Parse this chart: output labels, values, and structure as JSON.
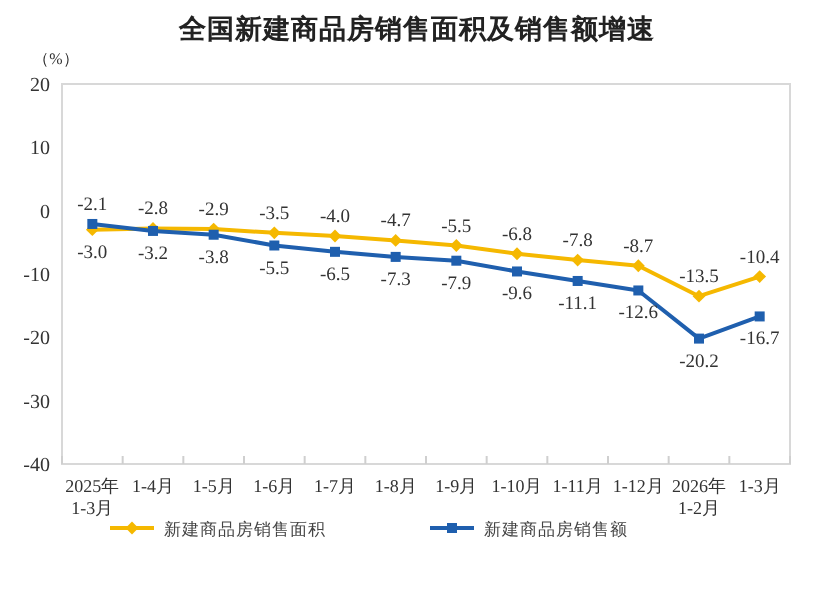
{
  "chart_data": {
    "type": "line",
    "title": "全国新建商品房销售面积及销售额增速",
    "ylabel": "（%）",
    "categories": [
      "2025年\n1-3月",
      "1-4月",
      "1-5月",
      "1-6月",
      "1-7月",
      "1-8月",
      "1-9月",
      "1-10月",
      "1-11月",
      "1-12月",
      "2026年\n1-2月",
      "1-3月"
    ],
    "series": [
      {
        "name": "新建商品房销售面积",
        "color": "#f5b800",
        "marker": "diamond",
        "values": [
          -3.0,
          -2.8,
          -2.9,
          -3.5,
          -4.0,
          -4.7,
          -5.5,
          -6.8,
          -7.8,
          -8.7,
          -13.5,
          -10.4
        ],
        "value_labels": [
          "-3.0",
          "-2.8",
          "-2.9",
          "-3.5",
          "-4.0",
          "-4.7",
          "-5.5",
          "-6.8",
          "-7.8",
          "-8.7",
          "-13.5",
          "-10.4"
        ]
      },
      {
        "name": "新建商品房销售额",
        "color": "#1f5fae",
        "marker": "square",
        "values": [
          -2.1,
          -3.2,
          -3.8,
          -5.5,
          -6.5,
          -7.3,
          -7.9,
          -9.6,
          -11.1,
          -12.6,
          -20.2,
          -16.7
        ],
        "value_labels": [
          "-2.1",
          "-3.2",
          "-3.8",
          "-5.5",
          "-6.5",
          "-7.3",
          "-7.9",
          "-9.6",
          "-11.1",
          "-12.6",
          "-20.2",
          "-16.7"
        ]
      }
    ],
    "ylim": [
      -40,
      20
    ],
    "yticks": [
      -40,
      -30,
      -20,
      -10,
      0,
      10,
      20
    ],
    "legend": "bottom",
    "grid": false
  }
}
